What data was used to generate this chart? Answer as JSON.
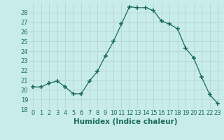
{
  "x": [
    0,
    1,
    2,
    3,
    4,
    5,
    6,
    7,
    8,
    9,
    10,
    11,
    12,
    13,
    14,
    15,
    16,
    17,
    18,
    19,
    20,
    21,
    22,
    23
  ],
  "y": [
    20.3,
    20.3,
    20.7,
    20.9,
    20.3,
    19.6,
    19.6,
    20.9,
    21.9,
    23.5,
    25.0,
    26.8,
    28.6,
    28.5,
    28.5,
    28.2,
    27.1,
    26.8,
    26.3,
    24.3,
    23.3,
    21.3,
    19.5,
    18.6
  ],
  "line_color": "#1a6b5a",
  "marker": "+",
  "marker_size": 4,
  "marker_lw": 1.2,
  "bg_color": "#c8ecea",
  "grid_color": "#b8d8d5",
  "tick_color": "#1a6b5a",
  "xlabel": "Humidex (Indice chaleur)",
  "xlabel_fontsize": 7.5,
  "tick_fontsize": 6,
  "ylim": [
    18,
    29
  ],
  "xlim": [
    -0.5,
    23.5
  ],
  "yticks": [
    18,
    19,
    20,
    21,
    22,
    23,
    24,
    25,
    26,
    27,
    28
  ],
  "xticks": [
    0,
    1,
    2,
    3,
    4,
    5,
    6,
    7,
    8,
    9,
    10,
    11,
    12,
    13,
    14,
    15,
    16,
    17,
    18,
    19,
    20,
    21,
    22,
    23
  ]
}
